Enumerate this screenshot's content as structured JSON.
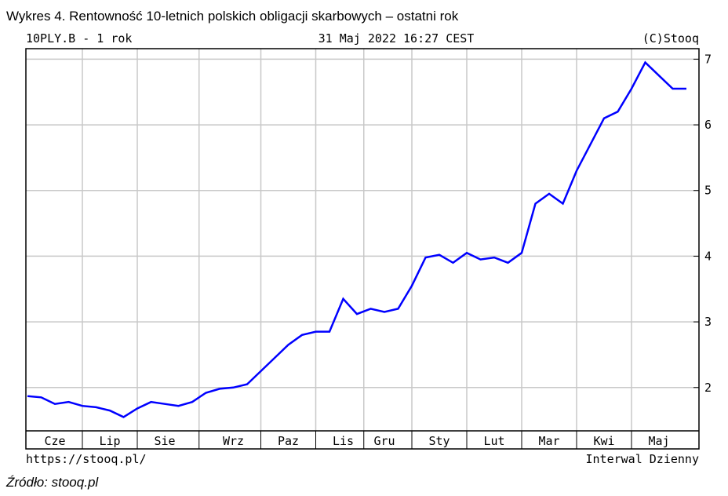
{
  "title": "Wykres 4. Rentowność 10-letnich polskich obligacji skarbowych – ostatni rok",
  "source": "Źródło: stooq.pl",
  "chart_data": {
    "type": "line",
    "symbol_label": "10PLY.B - 1 rok",
    "date_label": "31 Maj 2022 16:27 CEST",
    "copyright": "(C)Stooq",
    "url": "https://stooq.pl/",
    "interval_label": "Interwal Dzienny",
    "categories": [
      null,
      null,
      "Cze",
      null,
      null,
      null,
      "Lip",
      null,
      null,
      null,
      "Sie",
      null,
      null,
      null,
      null,
      "Wrz",
      null,
      null,
      null,
      "Paz",
      null,
      null,
      null,
      "Lis",
      null,
      null,
      "Gru",
      null,
      null,
      null,
      "Sty",
      null,
      null,
      null,
      "Lut",
      null,
      null,
      null,
      "Mar",
      null,
      null,
      null,
      "Kwi",
      null,
      null,
      null,
      "Maj",
      null,
      null
    ],
    "series": [
      {
        "name": "10PLY.B",
        "color": "#0000ff",
        "values": [
          1.87,
          1.85,
          1.75,
          1.78,
          1.72,
          1.7,
          1.65,
          1.55,
          1.68,
          1.78,
          1.75,
          1.72,
          1.78,
          1.92,
          1.98,
          2.0,
          2.05,
          2.25,
          2.45,
          2.65,
          2.8,
          2.85,
          2.85,
          3.35,
          3.12,
          3.2,
          3.15,
          3.2,
          3.55,
          3.98,
          4.02,
          3.9,
          4.05,
          3.95,
          3.98,
          3.9,
          4.05,
          4.8,
          4.95,
          4.8,
          5.3,
          5.7,
          6.1,
          6.2,
          6.55,
          6.95,
          6.75,
          6.55,
          6.55
        ]
      }
    ],
    "ylim": [
      1.34,
      7.16
    ],
    "yticks": [
      2,
      3,
      4,
      5,
      6,
      7
    ],
    "grid": true
  }
}
